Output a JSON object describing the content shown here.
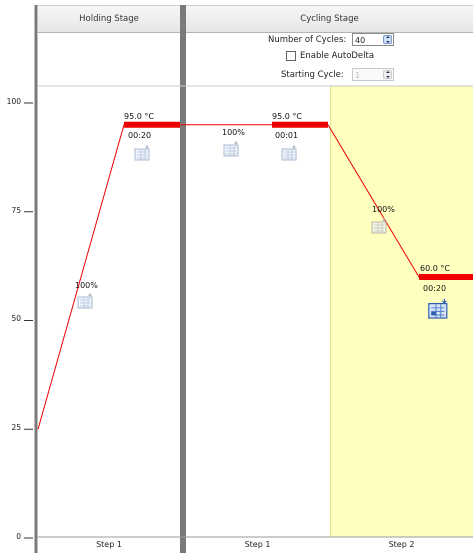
{
  "chart_data": {
    "type": "line",
    "ylim": [
      0,
      110
    ],
    "yticks": [
      0,
      25,
      50,
      75,
      100
    ],
    "ytick_labels": [
      "0",
      "25",
      "50",
      "75",
      "100"
    ],
    "stages": [
      {
        "name": "Holding Stage",
        "steps": [
          {
            "label": "Step 1",
            "temp": 95.0,
            "temp_label": "95.0 °C",
            "time": "00:20",
            "ramp": "100%"
          }
        ]
      },
      {
        "name": "Cycling Stage",
        "steps": [
          {
            "label": "Step 1",
            "temp": 95.0,
            "temp_label": "95.0 °C",
            "time": "00:01",
            "ramp": "100%"
          },
          {
            "label": "Step 2",
            "temp": 60.0,
            "temp_label": "60.0 °C",
            "time": "00:20",
            "ramp": "100%",
            "selected": true
          }
        ]
      }
    ],
    "start_temp": 25
  },
  "cycling": {
    "cycles_label": "Number of Cycles:",
    "cycles_value": "40",
    "autodelta_label": "Enable AutoDelta",
    "autodelta_checked": false,
    "starting_cycle_label": "Starting Cycle:",
    "starting_cycle_value": "1"
  },
  "icons": {
    "data_collection": "data-collection-icon"
  },
  "colors": {
    "plateau": "#ee0000",
    "ramp": "#ee0000",
    "selected_step_bg": "#ffffc0",
    "stage_divider": "#7a7a7a"
  }
}
